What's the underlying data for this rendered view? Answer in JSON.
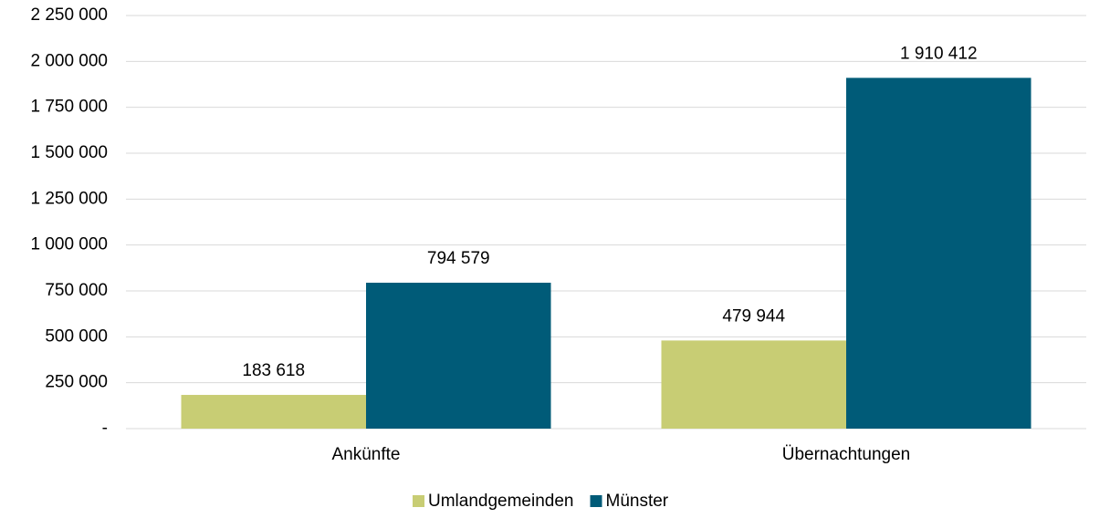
{
  "chart_data": {
    "type": "bar",
    "categories": [
      "Ankünfte",
      "Übernachtungen"
    ],
    "series": [
      {
        "name": "Umlandgemeinden",
        "color": "#c8cd74",
        "values": [
          183618,
          479944
        ],
        "value_labels": [
          "183 618",
          "479 944"
        ]
      },
      {
        "name": "Münster",
        "color": "#005b78",
        "values": [
          794579,
          1910412
        ],
        "value_labels": [
          "794 579",
          "1 910 412"
        ]
      }
    ],
    "ylim": [
      0,
      2250000
    ],
    "yticks": [
      {
        "value": 0,
        "label": "-"
      },
      {
        "value": 250000,
        "label": "250 000"
      },
      {
        "value": 500000,
        "label": "500 000"
      },
      {
        "value": 750000,
        "label": "750 000"
      },
      {
        "value": 1000000,
        "label": "1 000 000"
      },
      {
        "value": 1250000,
        "label": "1 250 000"
      },
      {
        "value": 1500000,
        "label": "1 500 000"
      },
      {
        "value": 1750000,
        "label": "1 750 000"
      },
      {
        "value": 2000000,
        "label": "2 000 000"
      },
      {
        "value": 2250000,
        "label": "2 250 000"
      }
    ],
    "grid": true,
    "legend": "bottom"
  }
}
